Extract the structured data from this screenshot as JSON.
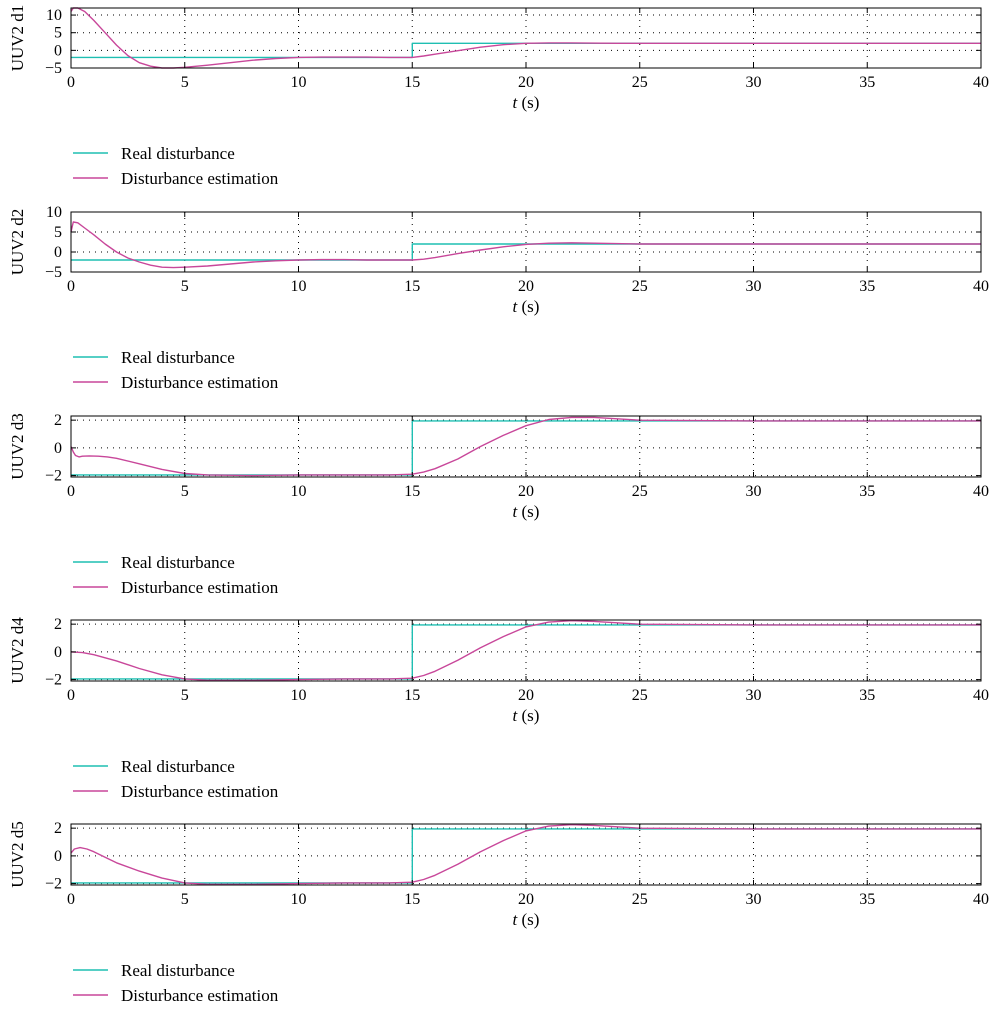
{
  "colors": {
    "real": "#1fbfb2",
    "estimation": "#c8479a",
    "axes": "#000000",
    "grid": "#000000"
  },
  "chart_data": [
    {
      "type": "line",
      "ylabel": "UUV2 d1",
      "xlabel_var": "t",
      "xlabel_unit": " (s)",
      "xlim": [
        0,
        40
      ],
      "ylim": [
        -5,
        12
      ],
      "xticks": [
        "0",
        "5",
        "10",
        "15",
        "20",
        "25",
        "30",
        "35",
        "40"
      ],
      "yticks": [
        {
          "v": 10,
          "label": "10"
        },
        {
          "v": 5,
          "label": "5"
        },
        {
          "v": 0,
          "label": "0"
        },
        {
          "v": -5,
          "label": "−5"
        }
      ],
      "grid": true,
      "legend": "below",
      "series": [
        {
          "name": "Real disturbance",
          "color": "real",
          "x": [
            0,
            15,
            15,
            40
          ],
          "y": [
            -2,
            -2,
            2,
            2
          ]
        },
        {
          "name": "Disturbance estimation",
          "color": "estimation",
          "x": [
            0,
            0.1,
            0.3,
            0.6,
            1,
            1.5,
            2,
            2.5,
            3,
            3.5,
            4,
            4.5,
            5,
            6,
            7,
            8,
            9,
            10,
            11,
            12,
            13,
            14,
            15,
            15.5,
            16,
            17,
            18,
            19,
            20,
            21,
            22,
            24,
            26,
            30,
            35,
            40
          ],
          "y": [
            11,
            12,
            12,
            11,
            8.5,
            5,
            1.5,
            -1.5,
            -3.5,
            -4.5,
            -5,
            -5,
            -4.8,
            -4.2,
            -3.5,
            -2.8,
            -2.3,
            -2,
            -1.9,
            -1.9,
            -1.9,
            -2,
            -2,
            -1.6,
            -1.1,
            -0.1,
            0.9,
            1.6,
            2.0,
            2.1,
            2.1,
            2.0,
            2.0,
            2.0,
            2.0,
            2.0
          ]
        }
      ]
    },
    {
      "type": "line",
      "ylabel": "UUV2 d2",
      "xlabel_var": "t",
      "xlabel_unit": " (s)",
      "xlim": [
        0,
        40
      ],
      "ylim": [
        -5,
        10
      ],
      "xticks": [
        "0",
        "5",
        "10",
        "15",
        "20",
        "25",
        "30",
        "35",
        "40"
      ],
      "yticks": [
        {
          "v": 10,
          "label": "10"
        },
        {
          "v": 5,
          "label": "5"
        },
        {
          "v": 0,
          "label": "0"
        },
        {
          "v": -5,
          "label": "−5"
        }
      ],
      "grid": true,
      "legend": "below",
      "series": [
        {
          "name": "Real disturbance",
          "color": "real",
          "x": [
            0,
            15,
            15,
            40
          ],
          "y": [
            -2,
            -2,
            2,
            2
          ]
        },
        {
          "name": "Disturbance estimation",
          "color": "estimation",
          "x": [
            0,
            0.1,
            0.3,
            0.6,
            1,
            1.5,
            2,
            2.5,
            3,
            3.5,
            4,
            4.5,
            5,
            6,
            7,
            8,
            9,
            10,
            11,
            12,
            13,
            14,
            15,
            15.5,
            16,
            17,
            18,
            19,
            20,
            21,
            22,
            23,
            25,
            30,
            35,
            40
          ],
          "y": [
            5,
            7.5,
            7.3,
            6,
            4.3,
            2,
            0,
            -1.5,
            -2.5,
            -3.3,
            -3.8,
            -3.9,
            -3.8,
            -3.5,
            -3,
            -2.5,
            -2.2,
            -2,
            -1.9,
            -1.9,
            -2,
            -2,
            -2,
            -1.8,
            -1.4,
            -0.4,
            0.5,
            1.3,
            1.9,
            2.2,
            2.3,
            2.2,
            2.0,
            2.0,
            2.0,
            2.0
          ]
        }
      ]
    },
    {
      "type": "line",
      "ylabel": "UUV2 d3",
      "xlabel_var": "t",
      "xlabel_unit": " (s)",
      "xlim": [
        0,
        40
      ],
      "ylim": [
        -2.1,
        2.3
      ],
      "xticks": [
        "0",
        "5",
        "10",
        "15",
        "20",
        "25",
        "30",
        "35",
        "40"
      ],
      "yticks": [
        {
          "v": 2,
          "label": "2"
        },
        {
          "v": 0,
          "label": "0"
        },
        {
          "v": -2,
          "label": "−2"
        }
      ],
      "grid": true,
      "legend": "below",
      "series": [
        {
          "name": "Real disturbance",
          "color": "real",
          "x": [
            0,
            15,
            15,
            40
          ],
          "y": [
            -1.95,
            -1.95,
            1.95,
            1.95
          ]
        },
        {
          "name": "Disturbance estimation",
          "color": "estimation",
          "x": [
            0,
            0.1,
            0.2,
            0.35,
            0.5,
            0.8,
            1.2,
            1.6,
            2,
            3,
            4,
            5,
            6,
            8,
            10,
            12,
            14,
            15,
            15.5,
            16,
            17,
            18,
            19,
            20,
            21,
            22,
            23,
            24,
            25,
            30,
            35,
            40
          ],
          "y": [
            0.1,
            -0.3,
            -0.55,
            -0.65,
            -0.6,
            -0.58,
            -0.6,
            -0.65,
            -0.75,
            -1.15,
            -1.55,
            -1.85,
            -1.95,
            -2.0,
            -1.95,
            -1.95,
            -1.95,
            -1.9,
            -1.75,
            -1.5,
            -0.8,
            0.1,
            0.9,
            1.6,
            2.05,
            2.2,
            2.2,
            2.1,
            2.0,
            1.95,
            1.95,
            1.95
          ]
        }
      ]
    },
    {
      "type": "line",
      "ylabel": "UUV2 d4",
      "xlabel_var": "t",
      "xlabel_unit": " (s)",
      "xlim": [
        0,
        40
      ],
      "ylim": [
        -2.1,
        2.3
      ],
      "xticks": [
        "0",
        "5",
        "10",
        "15",
        "20",
        "25",
        "30",
        "35",
        "40"
      ],
      "yticks": [
        {
          "v": 2,
          "label": "2"
        },
        {
          "v": 0,
          "label": "0"
        },
        {
          "v": -2,
          "label": "−2"
        }
      ],
      "grid": true,
      "legend": "below",
      "series": [
        {
          "name": "Real disturbance",
          "color": "real",
          "x": [
            0,
            15,
            15,
            40
          ],
          "y": [
            -1.95,
            -1.95,
            1.95,
            1.95
          ]
        },
        {
          "name": "Disturbance estimation",
          "color": "estimation",
          "x": [
            0,
            0.5,
            1,
            2,
            3,
            4,
            5,
            6,
            8,
            10,
            12,
            14,
            15,
            15.5,
            16,
            17,
            18,
            19,
            20,
            21,
            22,
            23,
            24,
            25,
            30,
            35,
            40
          ],
          "y": [
            0,
            -0.05,
            -0.2,
            -0.65,
            -1.2,
            -1.65,
            -1.95,
            -2.05,
            -2.05,
            -2.0,
            -1.95,
            -1.95,
            -1.9,
            -1.7,
            -1.4,
            -0.6,
            0.3,
            1.1,
            1.8,
            2.15,
            2.25,
            2.2,
            2.1,
            2.0,
            1.95,
            1.95,
            1.95
          ]
        }
      ]
    },
    {
      "type": "line",
      "ylabel": "UUV2 d5",
      "xlabel_var": "t",
      "xlabel_unit": " (s)",
      "xlim": [
        0,
        40
      ],
      "ylim": [
        -2.1,
        2.3
      ],
      "xticks": [
        "0",
        "5",
        "10",
        "15",
        "20",
        "25",
        "30",
        "35",
        "40"
      ],
      "yticks": [
        {
          "v": 2,
          "label": "2"
        },
        {
          "v": 0,
          "label": "0"
        },
        {
          "v": -2,
          "label": "−2"
        }
      ],
      "grid": true,
      "legend": "below",
      "series": [
        {
          "name": "Real disturbance",
          "color": "real",
          "x": [
            0,
            15,
            15,
            40
          ],
          "y": [
            -1.95,
            -1.95,
            1.95,
            1.95
          ]
        },
        {
          "name": "Disturbance estimation",
          "color": "estimation",
          "x": [
            0,
            0.15,
            0.4,
            0.7,
            1,
            1.5,
            2,
            3,
            4,
            5,
            6,
            8,
            10,
            12,
            14,
            15,
            15.5,
            16,
            17,
            18,
            19,
            20,
            21,
            22,
            23,
            24,
            25,
            30,
            35,
            40
          ],
          "y": [
            0.2,
            0.5,
            0.6,
            0.5,
            0.3,
            -0.1,
            -0.5,
            -1.1,
            -1.6,
            -1.95,
            -2.05,
            -2.05,
            -2.0,
            -1.95,
            -1.95,
            -1.9,
            -1.7,
            -1.4,
            -0.6,
            0.3,
            1.1,
            1.8,
            2.15,
            2.25,
            2.2,
            2.1,
            2.0,
            1.95,
            1.95,
            1.95
          ]
        }
      ]
    }
  ]
}
